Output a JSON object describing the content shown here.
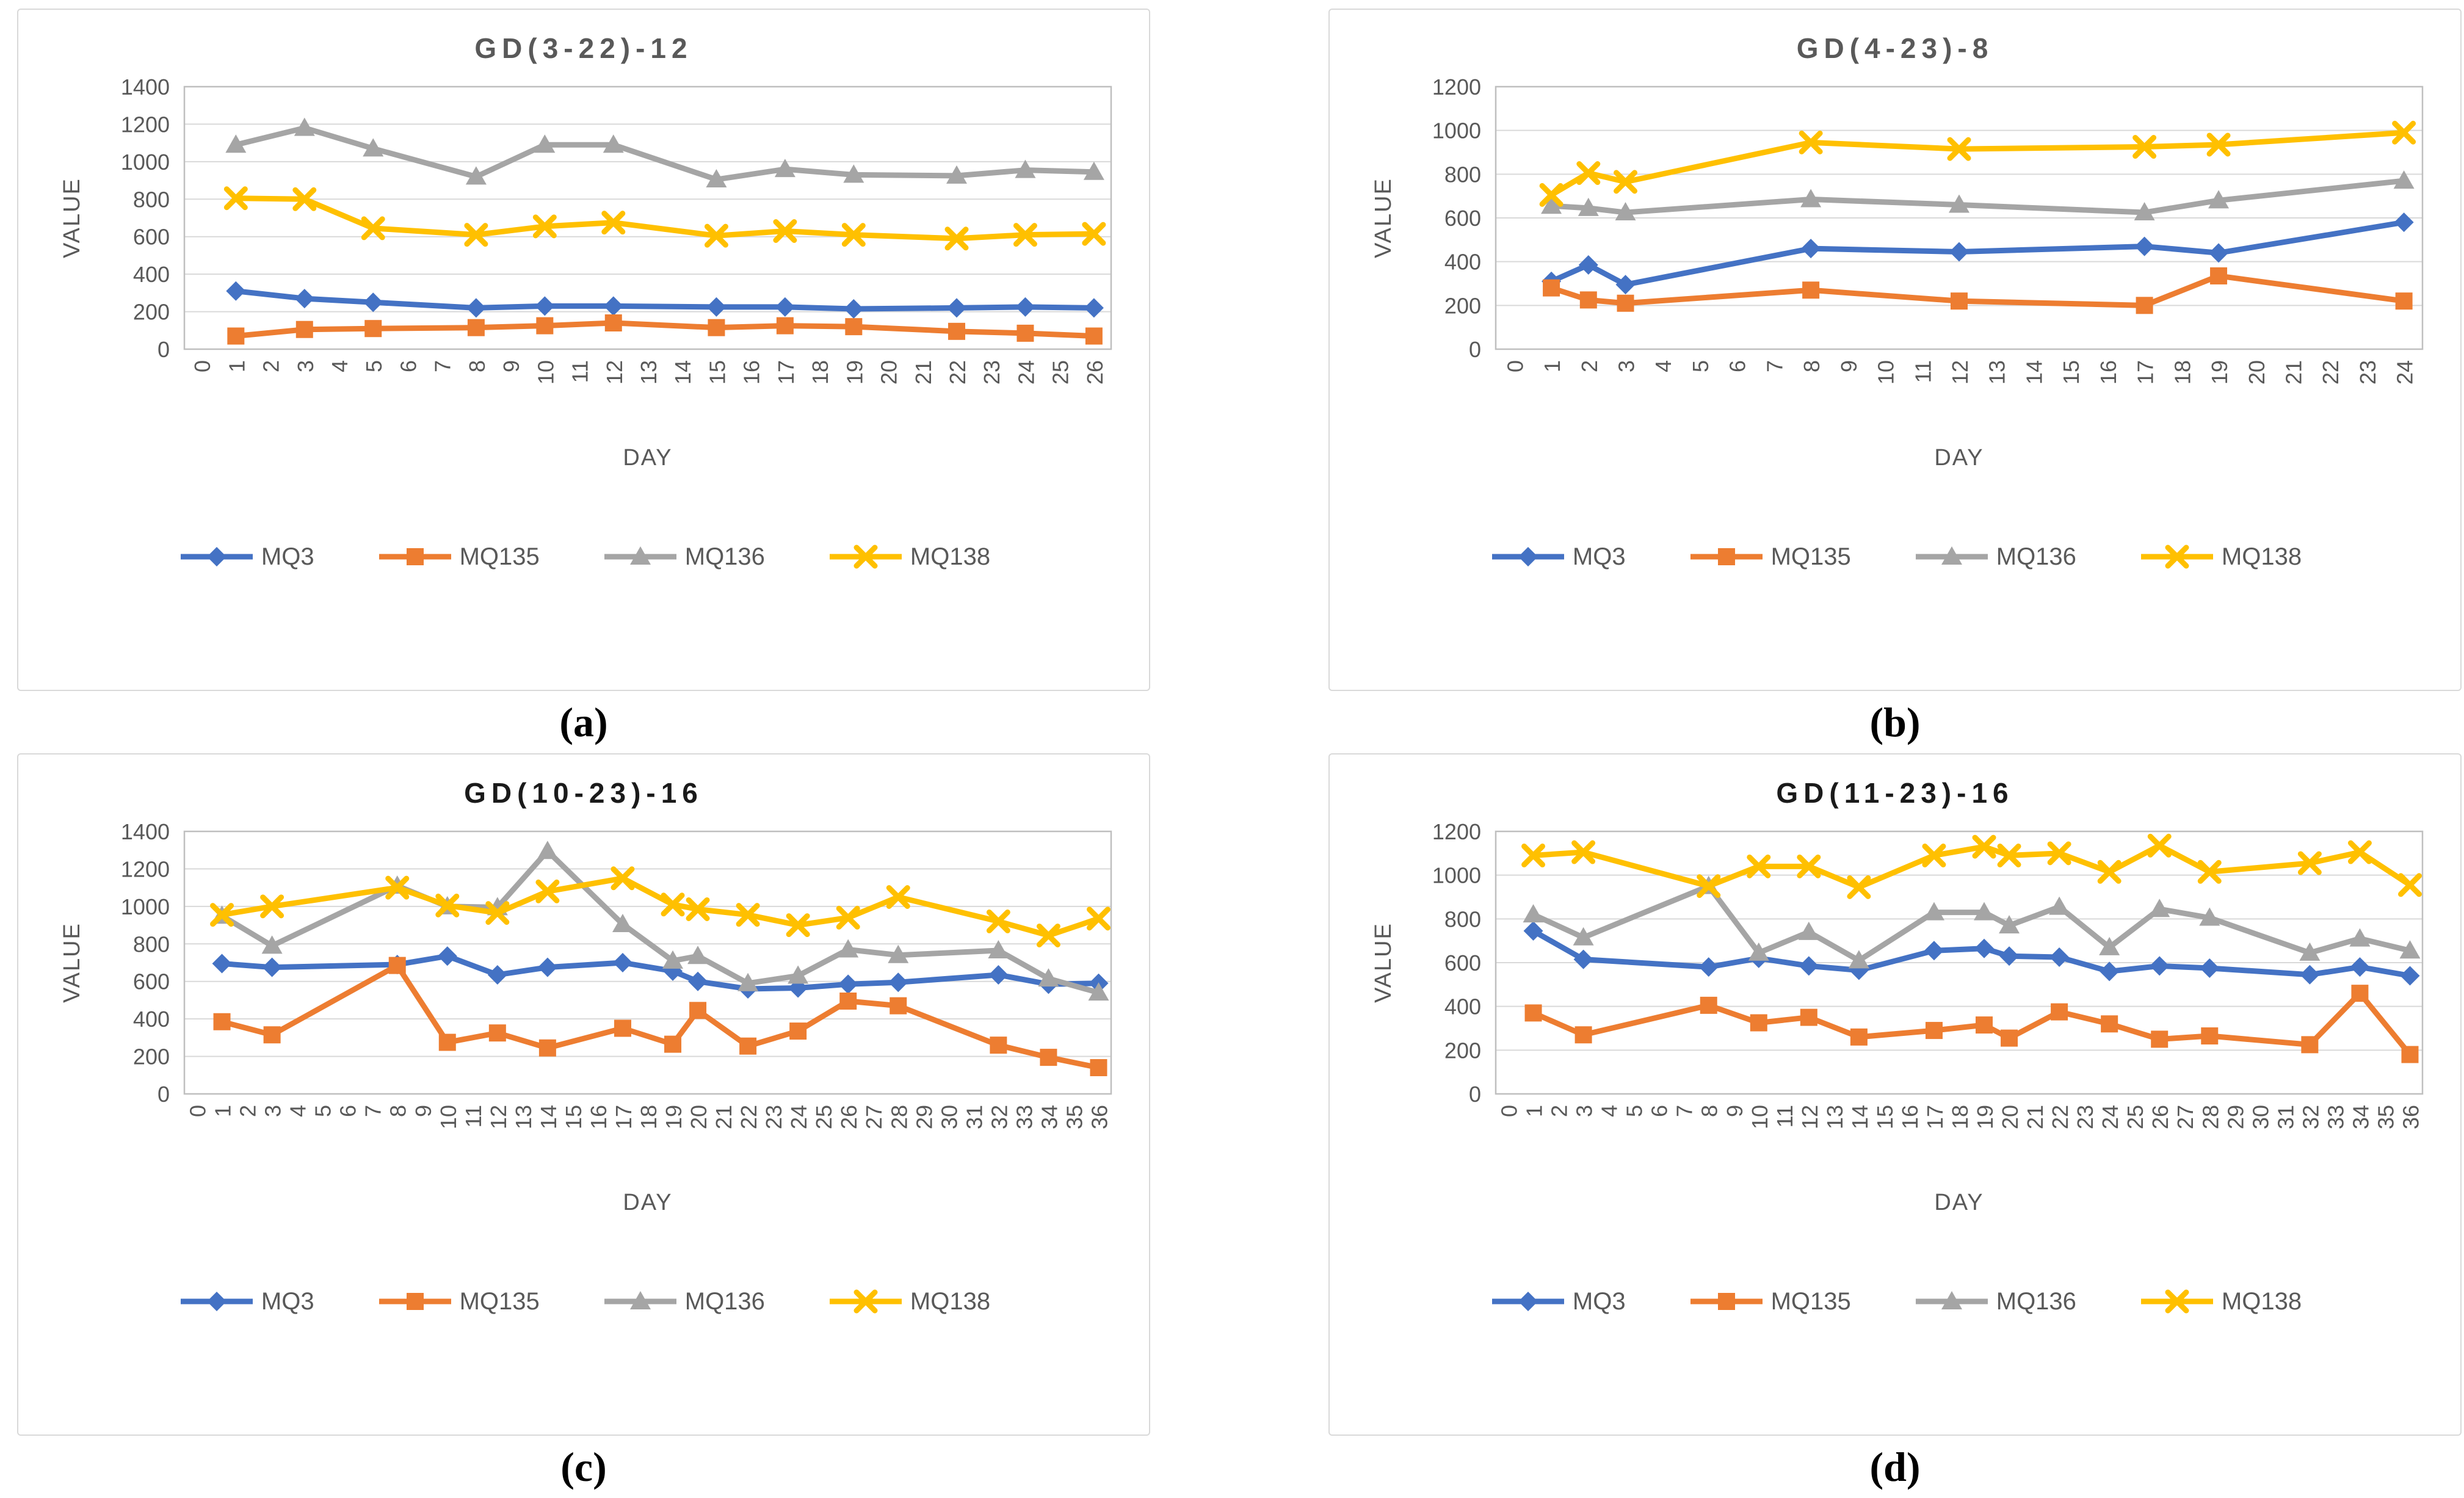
{
  "page": {
    "background": "#ffffff"
  },
  "palette": {
    "blue": "#4472C4",
    "orange": "#ED7D31",
    "gray": "#A5A5A5",
    "yellow": "#FFC000",
    "axis_text": "#595959",
    "grid_line": "#D9D9D9",
    "frame_line": "#BFBFBF",
    "panel_border": "#D9D9D9"
  },
  "captions": {
    "a": "(a)",
    "b": "(b)",
    "c": "(c)",
    "d": "(d)"
  },
  "chart_data": [
    {
      "id": "a",
      "type": "line",
      "title": "GD(3-22)-12",
      "title_color": "#595959",
      "title_dark": false,
      "xlabel": "DAY",
      "ylabel": "VALUE",
      "ylim": [
        0,
        1400
      ],
      "ytick_step": 200,
      "grid": true,
      "legend_position": "bottom",
      "x_ticks": [
        0,
        1,
        2,
        3,
        4,
        5,
        6,
        7,
        8,
        9,
        10,
        11,
        12,
        13,
        14,
        15,
        16,
        17,
        18,
        19,
        20,
        21,
        22,
        23,
        24,
        25,
        26
      ],
      "x": [
        1,
        3,
        5,
        8,
        10,
        12,
        15,
        17,
        19,
        22,
        24,
        26
      ],
      "series": [
        {
          "name": "MQ3",
          "color": "#4472C4",
          "marker": "diamond",
          "values": [
            310,
            270,
            250,
            220,
            230,
            230,
            225,
            225,
            215,
            220,
            225,
            220
          ]
        },
        {
          "name": "MQ135",
          "color": "#ED7D31",
          "marker": "square",
          "values": [
            70,
            105,
            110,
            115,
            125,
            140,
            115,
            125,
            120,
            95,
            85,
            70
          ]
        },
        {
          "name": "MQ136",
          "color": "#A5A5A5",
          "marker": "triangle",
          "values": [
            1090,
            1180,
            1070,
            920,
            1090,
            1090,
            905,
            960,
            930,
            925,
            955,
            945
          ]
        },
        {
          "name": "MQ138",
          "color": "#FFC000",
          "marker": "x",
          "values": [
            805,
            800,
            645,
            610,
            655,
            675,
            605,
            630,
            610,
            590,
            610,
            615
          ]
        }
      ]
    },
    {
      "id": "b",
      "type": "line",
      "title": "GD(4-23)-8",
      "title_color": "#595959",
      "title_dark": false,
      "xlabel": "DAY",
      "ylabel": "VALUE",
      "ylim": [
        0,
        1200
      ],
      "ytick_step": 200,
      "grid": true,
      "legend_position": "bottom",
      "x_ticks": [
        0,
        1,
        2,
        3,
        4,
        5,
        6,
        7,
        8,
        9,
        10,
        11,
        12,
        13,
        14,
        15,
        16,
        17,
        18,
        19,
        20,
        21,
        22,
        23,
        24
      ],
      "x": [
        1,
        2,
        3,
        8,
        12,
        17,
        19,
        24
      ],
      "series": [
        {
          "name": "MQ3",
          "color": "#4472C4",
          "marker": "diamond",
          "values": [
            310,
            385,
            295,
            460,
            445,
            470,
            440,
            580
          ]
        },
        {
          "name": "MQ135",
          "color": "#ED7D31",
          "marker": "square",
          "values": [
            280,
            225,
            210,
            270,
            220,
            200,
            335,
            220
          ]
        },
        {
          "name": "MQ136",
          "color": "#A5A5A5",
          "marker": "triangle",
          "values": [
            655,
            645,
            625,
            685,
            660,
            625,
            680,
            770
          ]
        },
        {
          "name": "MQ138",
          "color": "#FFC000",
          "marker": "x",
          "values": [
            705,
            805,
            765,
            945,
            915,
            925,
            935,
            990
          ]
        }
      ]
    },
    {
      "id": "c",
      "type": "line",
      "title": "GD(10-23)-16",
      "title_color": "#1A1A1A",
      "title_dark": true,
      "xlabel": "DAY",
      "ylabel": "VALUE",
      "ylim": [
        0,
        1400
      ],
      "ytick_step": 200,
      "grid": true,
      "legend_position": "bottom",
      "x_ticks": [
        0,
        1,
        2,
        3,
        4,
        5,
        6,
        7,
        8,
        9,
        10,
        11,
        12,
        13,
        14,
        15,
        16,
        17,
        18,
        19,
        20,
        21,
        22,
        23,
        24,
        25,
        26,
        27,
        28,
        29,
        30,
        31,
        32,
        33,
        34,
        35,
        36
      ],
      "x": [
        1,
        3,
        8,
        10,
        12,
        14,
        17,
        19,
        20,
        22,
        24,
        26,
        28,
        32,
        34,
        36
      ],
      "series": [
        {
          "name": "MQ3",
          "color": "#4472C4",
          "marker": "diamond",
          "values": [
            695,
            675,
            690,
            735,
            635,
            675,
            700,
            655,
            600,
            560,
            565,
            585,
            595,
            635,
            585,
            590
          ]
        },
        {
          "name": "MQ135",
          "color": "#ED7D31",
          "marker": "square",
          "values": [
            385,
            315,
            685,
            275,
            325,
            245,
            350,
            265,
            445,
            255,
            335,
            495,
            470,
            260,
            195,
            140
          ]
        },
        {
          "name": "MQ136",
          "color": "#A5A5A5",
          "marker": "triangle",
          "values": [
            950,
            790,
            1110,
            1000,
            995,
            1295,
            905,
            710,
            735,
            590,
            630,
            770,
            740,
            765,
            615,
            540
          ]
        },
        {
          "name": "MQ138",
          "color": "#FFC000",
          "marker": "x",
          "values": [
            955,
            1000,
            1100,
            1005,
            965,
            1080,
            1150,
            1010,
            985,
            955,
            900,
            940,
            1050,
            920,
            845,
            935
          ]
        }
      ]
    },
    {
      "id": "d",
      "type": "line",
      "title": "GD(11-23)-16",
      "title_color": "#1A1A1A",
      "title_dark": true,
      "xlabel": "DAY",
      "ylabel": "VALUE",
      "ylim": [
        0,
        1200
      ],
      "ytick_step": 200,
      "grid": true,
      "legend_position": "bottom",
      "x_ticks": [
        0,
        1,
        2,
        3,
        4,
        5,
        6,
        7,
        8,
        9,
        10,
        11,
        12,
        13,
        14,
        15,
        16,
        17,
        18,
        19,
        20,
        21,
        22,
        23,
        24,
        25,
        26,
        27,
        28,
        29,
        30,
        31,
        32,
        33,
        34,
        35,
        36
      ],
      "x": [
        1,
        3,
        8,
        10,
        12,
        14,
        17,
        19,
        20,
        22,
        24,
        26,
        28,
        32,
        34,
        36
      ],
      "series": [
        {
          "name": "MQ3",
          "color": "#4472C4",
          "marker": "diamond",
          "values": [
            745,
            615,
            580,
            620,
            585,
            565,
            655,
            665,
            630,
            625,
            560,
            585,
            575,
            545,
            580,
            540
          ]
        },
        {
          "name": "MQ135",
          "color": "#ED7D31",
          "marker": "square",
          "values": [
            370,
            270,
            405,
            325,
            350,
            260,
            290,
            315,
            255,
            375,
            320,
            250,
            265,
            225,
            460,
            180
          ]
        },
        {
          "name": "MQ136",
          "color": "#A5A5A5",
          "marker": "triangle",
          "values": [
            820,
            715,
            950,
            645,
            740,
            610,
            830,
            830,
            770,
            855,
            670,
            845,
            805,
            645,
            710,
            655
          ]
        },
        {
          "name": "MQ138",
          "color": "#FFC000",
          "marker": "x",
          "values": [
            1090,
            1105,
            950,
            1040,
            1040,
            945,
            1090,
            1130,
            1090,
            1100,
            1015,
            1135,
            1015,
            1055,
            1105,
            955
          ]
        }
      ]
    }
  ]
}
